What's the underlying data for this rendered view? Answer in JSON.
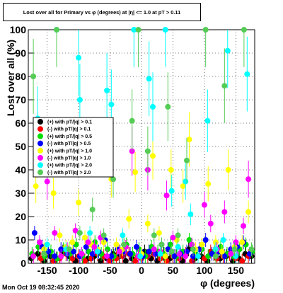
{
  "chart_data": {
    "type": "scatter",
    "title": "Lost over all for Primary vs φ (degrees) at |η| <= 1.0 at pT > 0.11",
    "xlabel": "φ (degrees)",
    "ylabel": "Lost over all (%)",
    "xlim": [
      -180,
      180
    ],
    "ylim": [
      0,
      100
    ],
    "x_ticks": [
      -150,
      -100,
      -50,
      0,
      50,
      100,
      150
    ],
    "y_ticks": [
      0,
      10,
      20,
      30,
      40,
      50,
      60,
      70,
      80,
      90,
      100
    ],
    "grid": true,
    "legend_position": "left-middle",
    "series": [
      {
        "name": "(+) with pT/|q| > 0.1",
        "color": "#000000",
        "points": [
          [
            -175,
            2
          ],
          [
            -165,
            4
          ],
          [
            -155,
            1
          ],
          [
            -145,
            3
          ],
          [
            -135,
            2
          ],
          [
            -125,
            5
          ],
          [
            -115,
            3
          ],
          [
            -105,
            1
          ],
          [
            -95,
            4
          ],
          [
            -85,
            2
          ],
          [
            -75,
            3
          ],
          [
            -65,
            1
          ],
          [
            -55,
            2
          ],
          [
            -45,
            4
          ],
          [
            -35,
            3
          ],
          [
            -25,
            1
          ],
          [
            -15,
            2
          ],
          [
            -5,
            3
          ],
          [
            5,
            5
          ],
          [
            15,
            2
          ],
          [
            25,
            1
          ],
          [
            35,
            4
          ],
          [
            45,
            2
          ],
          [
            55,
            3
          ],
          [
            65,
            1
          ],
          [
            75,
            6
          ],
          [
            85,
            2
          ],
          [
            95,
            3
          ],
          [
            105,
            1
          ],
          [
            115,
            4
          ],
          [
            125,
            2
          ],
          [
            135,
            3
          ],
          [
            145,
            1
          ],
          [
            155,
            2
          ],
          [
            165,
            4
          ],
          [
            175,
            3
          ]
        ]
      },
      {
        "name": "(-) with pT/|q| > 0.1",
        "color": "#ff0000",
        "points": [
          [
            -172,
            3
          ],
          [
            -160,
            2
          ],
          [
            -150,
            5
          ],
          [
            -140,
            1
          ],
          [
            -130,
            2
          ],
          [
            -120,
            4
          ],
          [
            -110,
            2
          ],
          [
            -100,
            3
          ],
          [
            -90,
            1
          ],
          [
            -80,
            2
          ],
          [
            -70,
            4
          ],
          [
            -60,
            3
          ],
          [
            -50,
            1
          ],
          [
            -40,
            2
          ],
          [
            -30,
            3
          ],
          [
            -20,
            4
          ],
          [
            -10,
            1
          ],
          [
            0,
            2
          ],
          [
            10,
            3
          ],
          [
            20,
            4
          ],
          [
            30,
            2
          ],
          [
            40,
            1
          ],
          [
            50,
            3
          ],
          [
            60,
            2
          ],
          [
            70,
            4
          ],
          [
            80,
            1
          ],
          [
            90,
            3
          ],
          [
            100,
            2
          ],
          [
            110,
            5
          ],
          [
            120,
            2
          ],
          [
            130,
            3
          ],
          [
            140,
            4
          ],
          [
            150,
            2
          ],
          [
            160,
            1
          ],
          [
            170,
            3
          ]
        ]
      },
      {
        "name": "(+) with pT/|q| > 0.5",
        "color": "#00dd00",
        "points": [
          [
            -174,
            4
          ],
          [
            -164,
            7
          ],
          [
            -154,
            3
          ],
          [
            -144,
            5
          ],
          [
            -134,
            2
          ],
          [
            -124,
            6
          ],
          [
            -114,
            4
          ],
          [
            -104,
            8
          ],
          [
            -94,
            3
          ],
          [
            -84,
            5
          ],
          [
            -74,
            9
          ],
          [
            -64,
            4
          ],
          [
            -54,
            6
          ],
          [
            -44,
            3
          ],
          [
            -34,
            5
          ],
          [
            -24,
            8
          ],
          [
            -14,
            4
          ],
          [
            -4,
            6
          ],
          [
            6,
            3
          ],
          [
            16,
            7
          ],
          [
            26,
            5
          ],
          [
            36,
            4
          ],
          [
            46,
            8
          ],
          [
            56,
            3
          ],
          [
            66,
            5
          ],
          [
            76,
            10
          ],
          [
            86,
            4
          ],
          [
            96,
            6
          ],
          [
            106,
            3
          ],
          [
            116,
            5
          ],
          [
            126,
            7
          ],
          [
            136,
            4
          ],
          [
            146,
            3
          ],
          [
            156,
            6
          ],
          [
            166,
            8
          ],
          [
            176,
            5
          ]
        ]
      },
      {
        "name": "(-) with pT/|q| > 0.5",
        "color": "#0000ff",
        "points": [
          [
            -170,
            13
          ],
          [
            -158,
            7
          ],
          [
            -148,
            5
          ],
          [
            -138,
            3
          ],
          [
            -128,
            6
          ],
          [
            -118,
            4
          ],
          [
            -108,
            5
          ],
          [
            -98,
            3
          ],
          [
            -88,
            7
          ],
          [
            -78,
            4
          ],
          [
            -68,
            5
          ],
          [
            -58,
            10
          ],
          [
            -48,
            3
          ],
          [
            -38,
            6
          ],
          [
            -28,
            5
          ],
          [
            -18,
            4
          ],
          [
            -8,
            7
          ],
          [
            2,
            3
          ],
          [
            12,
            5
          ],
          [
            22,
            4
          ],
          [
            32,
            8
          ],
          [
            42,
            6
          ],
          [
            52,
            3
          ],
          [
            62,
            4
          ],
          [
            72,
            5
          ],
          [
            82,
            3
          ],
          [
            92,
            6
          ],
          [
            102,
            10
          ],
          [
            112,
            4
          ],
          [
            122,
            5
          ],
          [
            132,
            3
          ],
          [
            142,
            6
          ],
          [
            152,
            7
          ],
          [
            162,
            9
          ],
          [
            172,
            4
          ]
        ]
      },
      {
        "name": "(+) with pT/|q| > 1.0",
        "color": "#ffff00",
        "points": [
          [
            -168,
            33
          ],
          [
            -155,
            6
          ],
          [
            -140,
            30
          ],
          [
            -130,
            12
          ],
          [
            -120,
            7
          ],
          [
            -110,
            9
          ],
          [
            -100,
            26
          ],
          [
            -90,
            11
          ],
          [
            -80,
            8
          ],
          [
            -70,
            6
          ],
          [
            -60,
            9
          ],
          [
            -48,
            36
          ],
          [
            -40,
            8
          ],
          [
            -30,
            6
          ],
          [
            -20,
            19
          ],
          [
            -10,
            39
          ],
          [
            0,
            4
          ],
          [
            10,
            17
          ],
          [
            18,
            46
          ],
          [
            28,
            13
          ],
          [
            38,
            3
          ],
          [
            47,
            40
          ],
          [
            56,
            10
          ],
          [
            66,
            33
          ],
          [
            76,
            53
          ],
          [
            86,
            6
          ],
          [
            96,
            8
          ],
          [
            106,
            34
          ],
          [
            118,
            9
          ],
          [
            128,
            5
          ],
          [
            138,
            40
          ],
          [
            148,
            7
          ],
          [
            160,
            9
          ],
          [
            170,
            22
          ]
        ]
      },
      {
        "name": "(-) with pT/|q| > 1.0",
        "color": "#ff00ff",
        "points": [
          [
            -172,
            3
          ],
          [
            -162,
            9
          ],
          [
            -150,
            35
          ],
          [
            -138,
            13
          ],
          [
            -128,
            3
          ],
          [
            -118,
            6
          ],
          [
            -105,
            14
          ],
          [
            -95,
            4
          ],
          [
            -85,
            9
          ],
          [
            -75,
            7
          ],
          [
            -65,
            11
          ],
          [
            -55,
            3
          ],
          [
            -45,
            36
          ],
          [
            -35,
            5
          ],
          [
            -25,
            7
          ],
          [
            -15,
            48
          ],
          [
            -5,
            3
          ],
          [
            10,
            40
          ],
          [
            20,
            6
          ],
          [
            30,
            5
          ],
          [
            40,
            29
          ],
          [
            50,
            11
          ],
          [
            60,
            4
          ],
          [
            70,
            3
          ],
          [
            80,
            8
          ],
          [
            90,
            3
          ],
          [
            100,
            25
          ],
          [
            110,
            17
          ],
          [
            120,
            6
          ],
          [
            132,
            22
          ],
          [
            142,
            4
          ],
          [
            150,
            9
          ],
          [
            162,
            16
          ],
          [
            170,
            36
          ]
        ]
      },
      {
        "name": "(+) with pT/|q| > 2.0",
        "color": "#00ffff",
        "points": [
          [
            -165,
            62
          ],
          [
            -150,
            8
          ],
          [
            -135,
            100
          ],
          [
            -120,
            6
          ],
          [
            -100,
            88
          ],
          [
            -98,
            70
          ],
          [
            -82,
            13
          ],
          [
            -70,
            5
          ],
          [
            -55,
            74
          ],
          [
            -48,
            68
          ],
          [
            -30,
            12
          ],
          [
            -12,
            100
          ],
          [
            -2,
            3
          ],
          [
            12,
            79
          ],
          [
            18,
            67
          ],
          [
            30,
            4
          ],
          [
            38,
            100
          ],
          [
            48,
            31
          ],
          [
            58,
            7
          ],
          [
            70,
            35
          ],
          [
            78,
            21
          ],
          [
            90,
            3
          ],
          [
            105,
            61
          ],
          [
            118,
            6
          ],
          [
            130,
            10
          ],
          [
            137,
            91
          ],
          [
            150,
            3
          ],
          [
            168,
            81
          ]
        ]
      },
      {
        "name": "(-) with pT/|q| > 2.0",
        "color": "#55cc55",
        "points": [
          [
            -172,
            80
          ],
          [
            -155,
            4
          ],
          [
            -135,
            100
          ],
          [
            -115,
            6
          ],
          [
            -98,
            13
          ],
          [
            -78,
            23
          ],
          [
            -60,
            12
          ],
          [
            -45,
            36
          ],
          [
            -28,
            8
          ],
          [
            -15,
            61
          ],
          [
            -5,
            100
          ],
          [
            10,
            48
          ],
          [
            20,
            12
          ],
          [
            32,
            8
          ],
          [
            42,
            67
          ],
          [
            48,
            5
          ],
          [
            58,
            12
          ],
          [
            72,
            44
          ],
          [
            82,
            6
          ],
          [
            102,
            100
          ],
          [
            118,
            3
          ],
          [
            132,
            76
          ],
          [
            148,
            6
          ],
          [
            163,
            100
          ],
          [
            175,
            6
          ]
        ]
      }
    ]
  },
  "footer": {
    "timestamp": "Mon Oct 19 08:32:45 2020"
  }
}
